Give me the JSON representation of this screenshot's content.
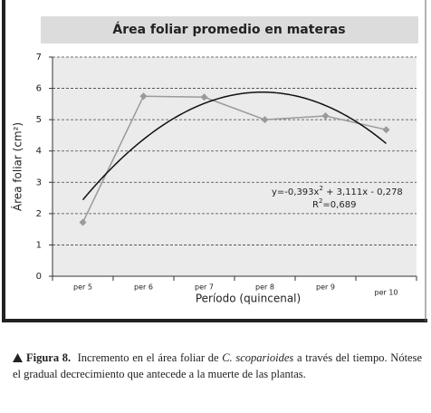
{
  "chart_data": {
    "type": "line",
    "title": "Área foliar promedio en materas",
    "x_label": "Período (quincenal)",
    "y_label": "Área foliar (cm²)",
    "categories": [
      "per 5",
      "per 6",
      "per 7",
      "per 8",
      "per 9",
      "per 10"
    ],
    "series": [
      {
        "name": "Área foliar",
        "color": "#9a9a9a",
        "values": [
          1.72,
          5.75,
          5.72,
          5.0,
          5.12,
          4.68
        ]
      }
    ],
    "ylim": [
      0,
      7
    ],
    "yticks": [
      0,
      1,
      2,
      3,
      4,
      5,
      6,
      7
    ],
    "grid": true,
    "trendline": {
      "type": "poly2",
      "coefficients": [
        -0.393,
        3.111,
        -0.278
      ],
      "color": "#111111"
    },
    "annotations": [
      {
        "parts": [
          "y=-0,393x",
          "2",
          " + 3,111x - 0,278"
        ]
      },
      {
        "parts": [
          "R",
          "2",
          "=0,689"
        ]
      }
    ]
  },
  "caption": {
    "label": "Figura 8.",
    "text_before": "Incremento en el área foliar de ",
    "species": "C. scoparioides",
    "text_after": " a través del tiempo. Nótese el gradual decrecimiento que antecede a la muerte de las plantas."
  }
}
